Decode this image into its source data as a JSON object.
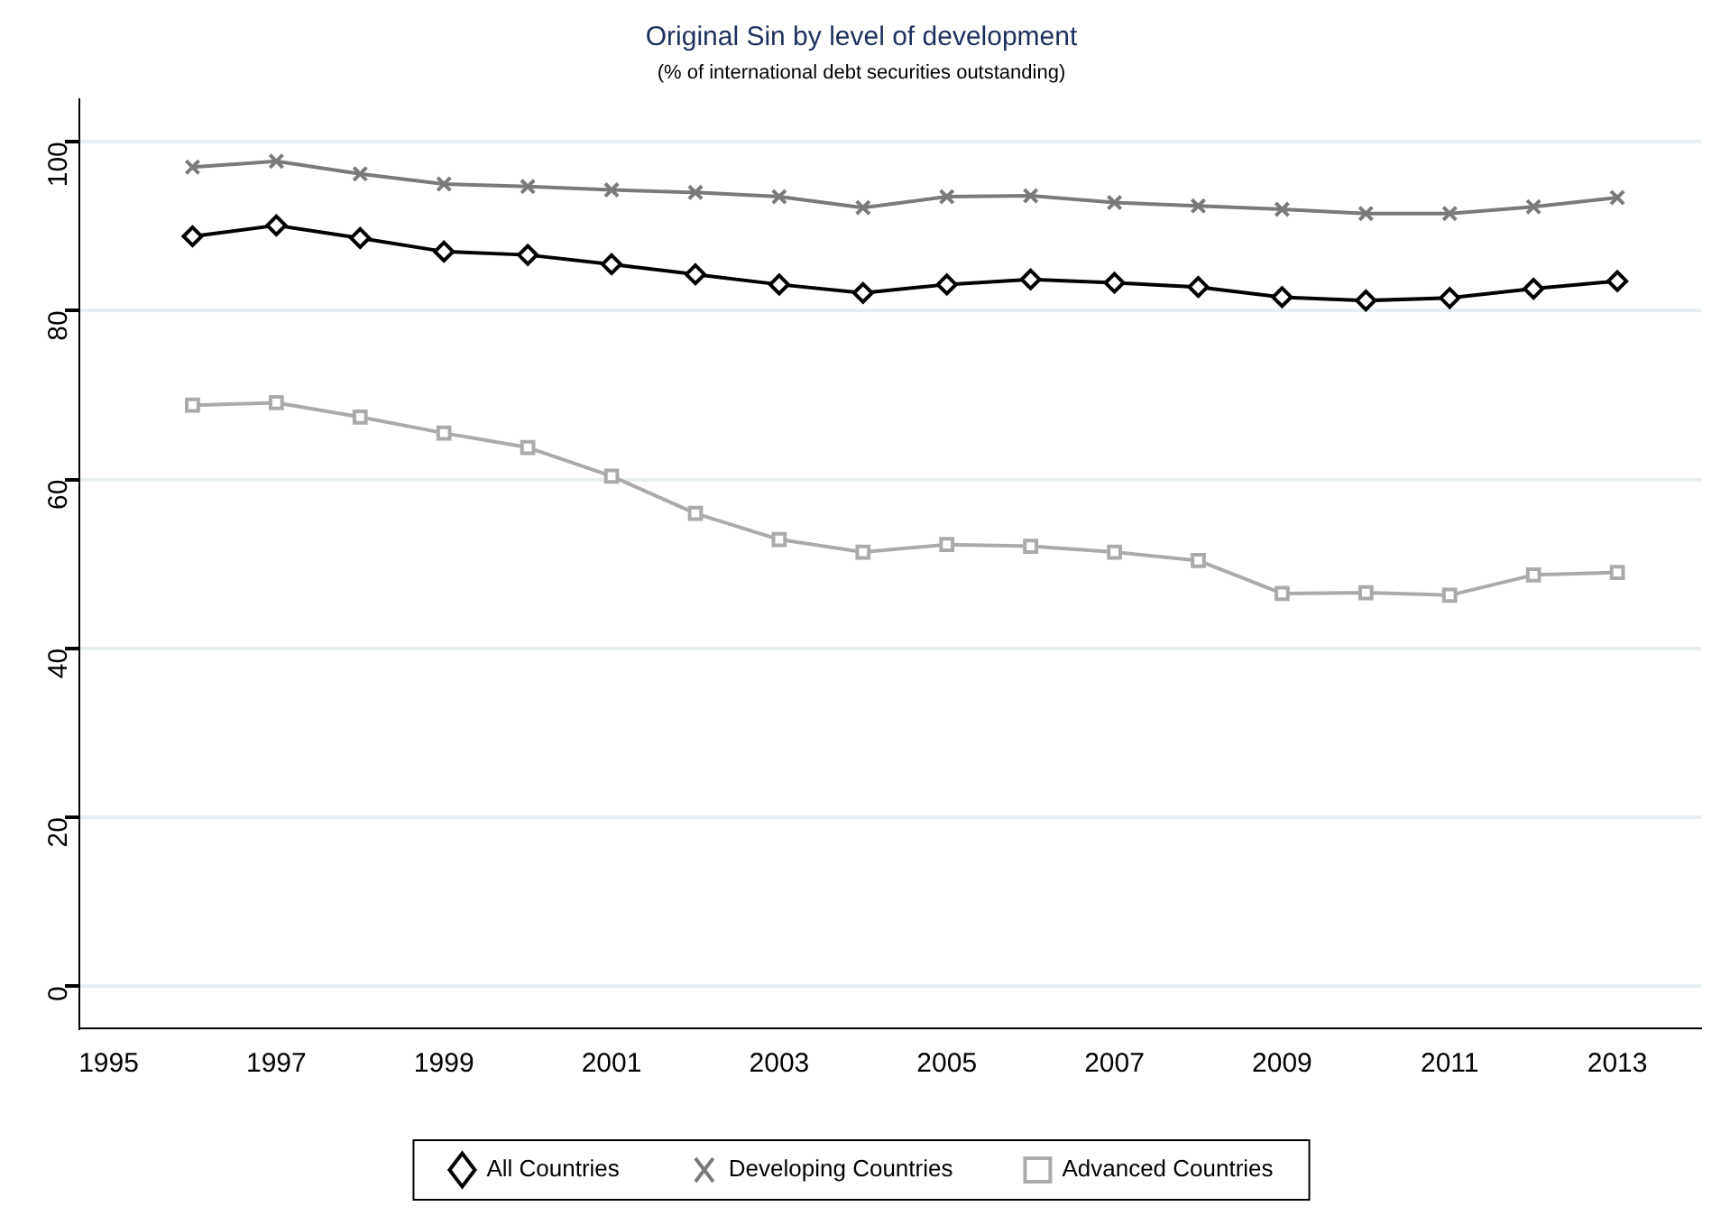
{
  "chart_data": {
    "type": "line",
    "title": "Original Sin by level of development",
    "subtitle": "(% of international debt securities outstanding)",
    "x": [
      1996,
      1997,
      1998,
      1999,
      2000,
      2001,
      2002,
      2003,
      2004,
      2005,
      2006,
      2007,
      2008,
      2009,
      2010,
      2011,
      2012,
      2013
    ],
    "series": [
      {
        "name": "All Countries",
        "color": "#000000",
        "marker": "diamond",
        "values": [
          88.8,
          90.1,
          88.6,
          87,
          86.6,
          85.5,
          84.3,
          83.1,
          82.1,
          83.1,
          83.7,
          83.3,
          82.8,
          81.6,
          81.2,
          81.5,
          82.6,
          83.5
        ]
      },
      {
        "name": "Developing Countries",
        "color": "#7a7a7a",
        "marker": "cross",
        "values": [
          97,
          97.7,
          96.2,
          95,
          94.7,
          94.3,
          94,
          93.5,
          92.2,
          93.5,
          93.6,
          92.8,
          92.4,
          92,
          91.5,
          91.5,
          92.3,
          93.4
        ]
      },
      {
        "name": "Advanced Countries",
        "color": "#aaaaaa",
        "marker": "square",
        "values": [
          68.8,
          69.1,
          67.4,
          65.5,
          63.8,
          60.4,
          56,
          52.9,
          51.4,
          52.3,
          52.1,
          51.4,
          50.4,
          46.5,
          46.6,
          46.3,
          48.7,
          49
        ]
      }
    ],
    "xlim": [
      1994.65,
      2014
    ],
    "xticks": [
      1995,
      1997,
      1999,
      2001,
      2003,
      2005,
      2007,
      2009,
      2011,
      2013
    ],
    "ylim": [
      -5,
      105
    ],
    "yticks": [
      0,
      20,
      40,
      60,
      80,
      100
    ],
    "grid": "y",
    "legend": "bottom",
    "line_style": "solid"
  }
}
